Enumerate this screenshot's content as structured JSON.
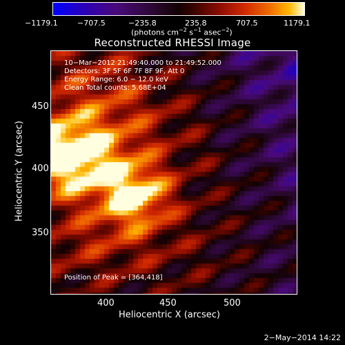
{
  "colorbar": {
    "ticks": [
      "−1179.1",
      "−707.5",
      "−235.8",
      "235.8",
      "707.5",
      "1179.1"
    ],
    "units_prefix": "(photons cm",
    "units_exp1": "−2",
    "units_mid": " s",
    "units_exp2": "−1",
    "units_mid2": " asec",
    "units_exp3": "−2",
    "units_suffix": ")"
  },
  "title": "Reconstructed RHESSI Image",
  "annotations": {
    "time_range": "10−Mar−2012 21:49:40.000 to 21:49:52.000",
    "detectors": "Detectors: 3F 5F 6F 7F 8F 9F, Att 0",
    "energy": "Energy Range: 6.0 − 12.0 keV",
    "clean": "Clean     Total counts: 5.68E+04",
    "peak": "Position of Peak = [364,418]"
  },
  "axes": {
    "x_label": "Heliocentric X (arcsec)",
    "y_label": "Heliocentric Y (arcsec)",
    "x_ticks": [
      "400",
      "450",
      "500"
    ],
    "y_ticks": [
      "450",
      "400",
      "350"
    ]
  },
  "footer": {
    "date": "2−May−2014 14:22"
  },
  "image_data": {
    "x_range": [
      360,
      550
    ],
    "y_range": [
      305,
      495
    ],
    "value_range": [
      -1179.1,
      1179.1
    ],
    "peak": [
      364,
      418
    ],
    "secondary_peak": [
      420,
      383
    ]
  }
}
